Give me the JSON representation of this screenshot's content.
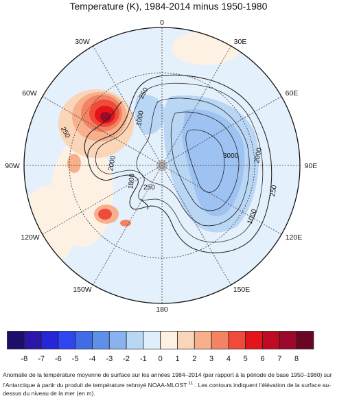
{
  "title": "Temperature (K), 1984-2014 minus 1950-1980",
  "longitude_labels": {
    "lon_0": "0",
    "lon_30e": "30E",
    "lon_60e": "60E",
    "lon_90e": "90E",
    "lon_120e": "120E",
    "lon_150e": "150E",
    "lon_180": "180",
    "lon_150w": "150W",
    "lon_120w": "120W",
    "lon_90w": "90W",
    "lon_60w": "60W",
    "lon_30w": "30W"
  },
  "contour_labels": {
    "c250_a": "250",
    "c1000_a": "1000",
    "c250_b": "250",
    "c2000_a": "2000",
    "c1000_b": "1000",
    "c250_c": "250",
    "c3000": "3000",
    "c2000_b": "2000",
    "c250_d": "250",
    "c1000_c": "1000"
  },
  "colorbar": {
    "ticks": [
      "-8",
      "-7",
      "-6",
      "-5",
      "-4",
      "-3",
      "-2",
      "-1",
      "0",
      "1",
      "2",
      "3",
      "4",
      "5",
      "6",
      "7",
      "8"
    ],
    "colors": [
      "#1b0f6b",
      "#2a17a8",
      "#2626d6",
      "#2f45f0",
      "#3f6de6",
      "#5e90e8",
      "#88b3ef",
      "#b9d6f5",
      "#dfeefa",
      "#fdf1e3",
      "#fbd5b8",
      "#f7b08b",
      "#f38363",
      "#ef4a3a",
      "#e3141a",
      "#c00a22",
      "#9b0a2a",
      "#6a0623"
    ]
  },
  "caption": {
    "text_before_ref": "Anomalie de la température moyenne de surface sur les années 1984–2014 (par rapport à la période de base 1950–1980) sur l’Antarctique à partir du produit de température rebroyé NOAA-MLOST ",
    "reference": "11",
    "text_after_ref": " . Les contours indiquent l’élévation de la surface au-dessus du niveau de la mer (en m)."
  }
}
